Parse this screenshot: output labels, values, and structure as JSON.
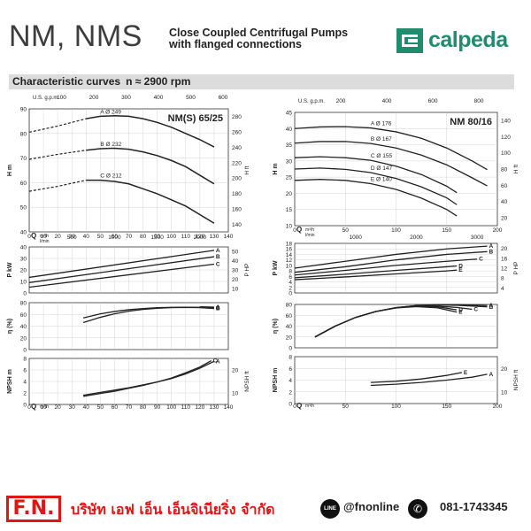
{
  "header": {
    "model": "NM, NMS",
    "desc_line1": "Close Coupled Centrifugal Pumps",
    "desc_line2": "with flanged connections",
    "logo": "calpeda"
  },
  "section": {
    "label": "Characteristic curves",
    "speed": "n ≈ 2900 rpm"
  },
  "footer": {
    "fn": "F.N.",
    "company": "บริษัท เอฟ เอ็น เอ็นจิเนียริ่ง จำกัด",
    "line_label": "LINE",
    "line_id": "@fnonline",
    "phone": "081-1743345",
    "phone_icon": "phone-icon"
  },
  "chart_data": [
    {
      "type": "line",
      "title": "NM(S) 65/25",
      "q_ticks": [
        0,
        10,
        20,
        30,
        40,
        50,
        60,
        70,
        80,
        90,
        100,
        110,
        120,
        130,
        140
      ],
      "qmax": 140,
      "q_label": "Q",
      "q_unit": "m³/h",
      "q_unit2": "l/min",
      "us_label": "U.S. g.p.m.",
      "us_ticks": [
        100,
        200,
        300,
        400,
        500,
        600
      ],
      "lmin_ticks": [
        500,
        1000,
        1500,
        2000
      ],
      "panels": {
        "head": {
          "label": "H m",
          "right_label": "H ft",
          "ylim": [
            40,
            90
          ],
          "ticks": [
            40,
            50,
            60,
            70,
            80,
            90
          ],
          "right_ticks": [
            140,
            160,
            180,
            200,
            220,
            240,
            260,
            280
          ],
          "series": [
            {
              "name": "A",
              "label": "A Ø 249",
              "dashed_to": 40,
              "x": [
                0,
                20,
                40,
                50,
                60,
                70,
                80,
                90,
                100,
                110,
                120,
                130
              ],
              "y": [
                80.5,
                83,
                86,
                87,
                87.2,
                87,
                86,
                84.5,
                82.5,
                80,
                77.5,
                74.5
              ]
            },
            {
              "name": "B",
              "label": "B Ø 232",
              "dashed_to": 40,
              "x": [
                0,
                20,
                40,
                50,
                60,
                70,
                80,
                90,
                100,
                110,
                120,
                130
              ],
              "y": [
                69.5,
                71.5,
                73.2,
                73.8,
                74,
                73.6,
                72.5,
                71,
                69,
                66.5,
                63,
                59.5
              ]
            },
            {
              "name": "C",
              "label": "C Ø 212",
              "dashed_to": 40,
              "x": [
                0,
                20,
                40,
                50,
                60,
                70,
                80,
                90,
                100,
                110,
                120,
                130
              ],
              "y": [
                56.5,
                58.5,
                61,
                61,
                60.5,
                59.5,
                57.5,
                55.5,
                53,
                50.5,
                47,
                43.5
              ]
            }
          ]
        },
        "power": {
          "label": "P kW",
          "right_label": "P HP",
          "ylim": [
            0,
            40
          ],
          "ticks": [
            0,
            10,
            20,
            30,
            40
          ],
          "right_ticks": [
            10,
            20,
            30,
            40,
            50
          ],
          "series": [
            {
              "name": "A",
              "x": [
                0,
                130
              ],
              "y": [
                13.5,
                37
              ]
            },
            {
              "name": "B",
              "x": [
                0,
                130
              ],
              "y": [
                9,
                31.5
              ]
            },
            {
              "name": "C",
              "x": [
                0,
                130
              ],
              "y": [
                5,
                25
              ]
            }
          ]
        },
        "efficiency": {
          "label": "η (%)",
          "ylim": [
            0,
            80
          ],
          "ticks": [
            0,
            20,
            40,
            60,
            80
          ],
          "series": [
            {
              "name": "C",
              "x": [
                38,
                50,
                60,
                70,
                80,
                90,
                100,
                110,
                120,
                130
              ],
              "y": [
                54,
                61,
                65,
                68,
                70,
                71.5,
                72,
                72.2,
                72,
                71
              ]
            },
            {
              "name": "B",
              "x": [
                38,
                50,
                60,
                70,
                80,
                90,
                100,
                110,
                120,
                130
              ],
              "y": [
                46,
                55,
                61,
                65.5,
                68.5,
                70.5,
                71.5,
                72,
                71.5,
                70
              ]
            },
            {
              "name": "A",
              "x": [
                120,
                130
              ],
              "y": [
                73,
                72.5
              ]
            }
          ]
        },
        "npsh": {
          "label": "NPSH m",
          "right_label": "NPSH ft",
          "ylim": [
            0,
            8
          ],
          "ticks": [
            0,
            2,
            4,
            6,
            8
          ],
          "right_ticks": [
            10,
            20
          ],
          "series": [
            {
              "name": "C",
              "x": [
                38,
                50,
                60,
                70,
                80,
                90,
                100,
                110,
                120,
                128
              ],
              "y": [
                1.4,
                1.9,
                2.3,
                2.8,
                3.3,
                3.9,
                4.6,
                5.5,
                6.5,
                7.6
              ]
            },
            {
              "name": "A",
              "x": [
                38,
                50,
                60,
                70,
                80,
                90,
                100,
                110,
                120,
                130
              ],
              "y": [
                1.6,
                2.1,
                2.5,
                2.9,
                3.4,
                3.9,
                4.5,
                5.3,
                6.3,
                7.5
              ]
            }
          ]
        }
      }
    },
    {
      "type": "line",
      "title": "NM 80/16",
      "q_ticks": [
        0,
        50,
        100,
        150,
        200
      ],
      "qmax": 200,
      "q_label": "Q",
      "q_unit": "m³/h",
      "q_unit2": "l/min",
      "us_label": "U.S. g.p.m.",
      "us_ticks": [
        200,
        400,
        600,
        800
      ],
      "lmin_ticks": [
        1000,
        2000,
        3000
      ],
      "panels": {
        "head": {
          "label": "H m",
          "right_label": "H ft",
          "ylim": [
            10,
            45
          ],
          "ticks": [
            10,
            15,
            20,
            25,
            30,
            35,
            40,
            45
          ],
          "right_ticks": [
            20,
            40,
            60,
            80,
            100,
            120,
            140
          ],
          "series": [
            {
              "name": "A",
              "label": "A Ø 176",
              "x": [
                0,
                25,
                50,
                75,
                100,
                125,
                150,
                175,
                190
              ],
              "y": [
                40,
                40.5,
                40.6,
                40.2,
                39,
                37,
                34,
                30,
                27.3
              ]
            },
            {
              "name": "B",
              "label": "B Ø 167",
              "x": [
                0,
                25,
                50,
                75,
                100,
                125,
                150,
                175,
                190
              ],
              "y": [
                35.5,
                36,
                36,
                35.4,
                34,
                31.8,
                28.8,
                24.8,
                22.3
              ]
            },
            {
              "name": "C",
              "label": "C Ø 155",
              "x": [
                0,
                25,
                50,
                75,
                100,
                125,
                150,
                160
              ],
              "y": [
                31,
                31.3,
                31,
                30.2,
                28.4,
                25.8,
                22.2,
                20.2
              ]
            },
            {
              "name": "D",
              "label": "D Ø 147",
              "x": [
                0,
                25,
                50,
                75,
                100,
                125,
                150,
                160
              ],
              "y": [
                27.5,
                27.8,
                27.4,
                26.4,
                24.6,
                22,
                18.6,
                16.5
              ]
            },
            {
              "name": "E",
              "label": "E Ø 140",
              "x": [
                0,
                25,
                50,
                75,
                100,
                125,
                150,
                160
              ],
              "y": [
                24,
                24.3,
                24,
                23,
                21.2,
                18.5,
                15,
                13
              ]
            }
          ]
        },
        "power": {
          "label": "P kW",
          "right_label": "P HP",
          "ylim": [
            0,
            18
          ],
          "ticks": [
            0,
            2,
            4,
            6,
            8,
            10,
            12,
            14,
            16,
            18
          ],
          "right_ticks": [
            4,
            8,
            12,
            16,
            20
          ],
          "series": [
            {
              "name": "A",
              "x": [
                0,
                50,
                100,
                150,
                190
              ],
              "y": [
                9,
                11.5,
                14,
                16,
                17
              ]
            },
            {
              "name": "B",
              "x": [
                0,
                50,
                100,
                150,
                190
              ],
              "y": [
                7.5,
                9.5,
                12,
                14,
                15
              ]
            },
            {
              "name": "C",
              "x": [
                0,
                50,
                100,
                150,
                180
              ],
              "y": [
                6.5,
                8.2,
                10,
                11.5,
                12.3
              ]
            },
            {
              "name": "D",
              "x": [
                0,
                50,
                100,
                150,
                160
              ],
              "y": [
                5.5,
                6.8,
                8.2,
                9.5,
                9.8
              ]
            },
            {
              "name": "E",
              "x": [
                0,
                50,
                100,
                150,
                160
              ],
              "y": [
                4.8,
                5.8,
                6.9,
                8,
                8.3
              ]
            }
          ]
        },
        "efficiency": {
          "label": "η (%)",
          "ylim": [
            0,
            80
          ],
          "ticks": [
            0,
            20,
            40,
            60,
            80
          ],
          "series": [
            {
              "name": "A",
              "x": [
                20,
                40,
                60,
                80,
                100,
                120,
                140,
                160,
                180,
                190
              ],
              "y": [
                20,
                40,
                56,
                67,
                74,
                78,
                79.5,
                79.5,
                78.5,
                78
              ]
            },
            {
              "name": "B",
              "x": [
                20,
                40,
                60,
                80,
                100,
                120,
                140,
                160,
                180,
                190
              ],
              "y": [
                20,
                40,
                56,
                67,
                74,
                78,
                79,
                78.5,
                76.5,
                75.5
              ]
            },
            {
              "name": "C",
              "x": [
                20,
                40,
                60,
                80,
                100,
                120,
                140,
                160,
                175
              ],
              "y": [
                20,
                40,
                56,
                67,
                74,
                77.5,
                77,
                74.5,
                71
              ]
            },
            {
              "name": "D",
              "x": [
                20,
                40,
                60,
                80,
                100,
                120,
                140,
                160
              ],
              "y": [
                20,
                40,
                56,
                67,
                74,
                77,
                76,
                70
              ]
            },
            {
              "name": "E",
              "x": [
                20,
                40,
                60,
                80,
                100,
                120,
                140,
                160
              ],
              "y": [
                20,
                40,
                56,
                67,
                73.5,
                76,
                74,
                66
              ]
            }
          ]
        },
        "npsh": {
          "label": "NPSH m",
          "right_label": "NPSH ft",
          "ylim": [
            0,
            8
          ],
          "ticks": [
            0,
            2,
            4,
            6,
            8
          ],
          "right_ticks": [
            10,
            20
          ],
          "series": [
            {
              "name": "E",
              "x": [
                75,
                100,
                125,
                150,
                165
              ],
              "y": [
                3.6,
                3.8,
                4.2,
                4.8,
                5.3
              ]
            },
            {
              "name": "A",
              "x": [
                75,
                100,
                125,
                150,
                175,
                190
              ],
              "y": [
                3.1,
                3.3,
                3.6,
                4,
                4.5,
                5
              ]
            }
          ]
        }
      }
    }
  ]
}
